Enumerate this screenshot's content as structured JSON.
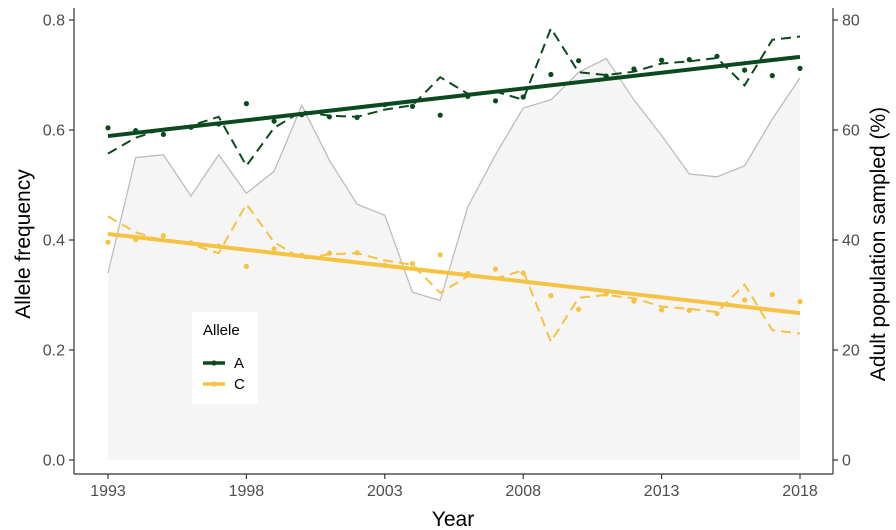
{
  "chart_data": {
    "type": "line",
    "xlabel": "Year",
    "ylabel": "Allele frequency",
    "y2label": "Adult population sampled (%)",
    "xlim": [
      1993,
      2018
    ],
    "ylim": [
      0,
      0.8
    ],
    "y2lim": [
      0,
      80
    ],
    "x_ticks": [
      "1993",
      "1998",
      "2003",
      "2008",
      "2013",
      "2018"
    ],
    "y_ticks": [
      "0.0",
      "0.2",
      "0.4",
      "0.6",
      "0.8"
    ],
    "y2_ticks": [
      "0",
      "20",
      "40",
      "60",
      "80"
    ],
    "grid": false,
    "legend": {
      "title": "Allele",
      "position": "bottom-left inside",
      "entries": [
        "A",
        "C"
      ]
    },
    "colors": {
      "A": "#0b4a1f",
      "C": "#f5c242",
      "population_line": "#bdbdbd",
      "population_fill": "#f5f5f5"
    },
    "population_sampled": {
      "x": [
        1993,
        1994,
        1995,
        1996,
        1997,
        1998,
        1999,
        2000,
        2001,
        2002,
        2003,
        2004,
        2005,
        2006,
        2007,
        2008,
        2009,
        2010,
        2011,
        2012,
        2013,
        2014,
        2015,
        2016,
        2017,
        2018
      ],
      "values": [
        34,
        55,
        55.5,
        48,
        55.5,
        48.5,
        52.5,
        64.5,
        54.5,
        46.5,
        44.5,
        30.5,
        29,
        46,
        55.5,
        64,
        65.5,
        70.5,
        73,
        65.5,
        59,
        52,
        51.5,
        53.5,
        62,
        69.5
      ]
    },
    "series": [
      {
        "name": "A",
        "points": {
          "x": [
            1993,
            1994,
            1995,
            1996,
            1997,
            1998,
            1999,
            2000,
            2001,
            2002,
            2003,
            2004,
            2005,
            2006,
            2007,
            2008,
            2009,
            2010,
            2011,
            2012,
            2013,
            2014,
            2015,
            2016,
            2017,
            2018
          ],
          "y": [
            0.604,
            0.599,
            0.592,
            0.605,
            0.611,
            0.648,
            0.616,
            0.628,
            0.624,
            0.623,
            0.646,
            0.643,
            0.627,
            0.661,
            0.653,
            0.66,
            0.701,
            0.726,
            0.698,
            0.711,
            0.727,
            0.728,
            0.734,
            0.709,
            0.699,
            0.712
          ]
        },
        "dashed": {
          "x": [
            1993,
            1994,
            1995,
            1996,
            1997,
            1998,
            1999,
            2000,
            2001,
            2002,
            2003,
            2004,
            2005,
            2006,
            2007,
            2008,
            2009,
            2010,
            2011,
            2012,
            2013,
            2014,
            2015,
            2016,
            2017,
            2018
          ],
          "y": [
            0.557,
            0.586,
            0.602,
            0.608,
            0.624,
            0.535,
            0.604,
            0.634,
            0.626,
            0.624,
            0.637,
            0.645,
            0.696,
            0.666,
            0.67,
            0.655,
            0.785,
            0.705,
            0.7,
            0.706,
            0.721,
            0.725,
            0.731,
            0.681,
            0.764,
            0.77
          ]
        },
        "trend": {
          "x": [
            1993,
            2018
          ],
          "y": [
            0.589,
            0.733
          ]
        }
      },
      {
        "name": "C",
        "points": {
          "x": [
            1993,
            1994,
            1995,
            1996,
            1997,
            1998,
            1999,
            2000,
            2001,
            2002,
            2003,
            2004,
            2005,
            2006,
            2007,
            2008,
            2009,
            2010,
            2011,
            2012,
            2013,
            2014,
            2015,
            2016,
            2017,
            2018
          ],
          "y": [
            0.396,
            0.401,
            0.408,
            0.395,
            0.389,
            0.352,
            0.384,
            0.372,
            0.376,
            0.377,
            0.354,
            0.357,
            0.373,
            0.339,
            0.347,
            0.34,
            0.299,
            0.274,
            0.302,
            0.289,
            0.273,
            0.272,
            0.266,
            0.291,
            0.301,
            0.288
          ]
        },
        "dashed": {
          "x": [
            1993,
            1994,
            1995,
            1996,
            1997,
            1998,
            1999,
            2000,
            2001,
            2002,
            2003,
            2004,
            2005,
            2006,
            2007,
            2008,
            2009,
            2010,
            2011,
            2012,
            2013,
            2014,
            2015,
            2016,
            2017,
            2018
          ],
          "y": [
            0.443,
            0.414,
            0.398,
            0.392,
            0.376,
            0.465,
            0.396,
            0.366,
            0.374,
            0.376,
            0.363,
            0.355,
            0.304,
            0.334,
            0.33,
            0.345,
            0.215,
            0.295,
            0.3,
            0.294,
            0.279,
            0.275,
            0.269,
            0.319,
            0.236,
            0.23
          ]
        },
        "trend": {
          "x": [
            1993,
            2018
          ],
          "y": [
            0.411,
            0.267
          ]
        }
      }
    ]
  }
}
